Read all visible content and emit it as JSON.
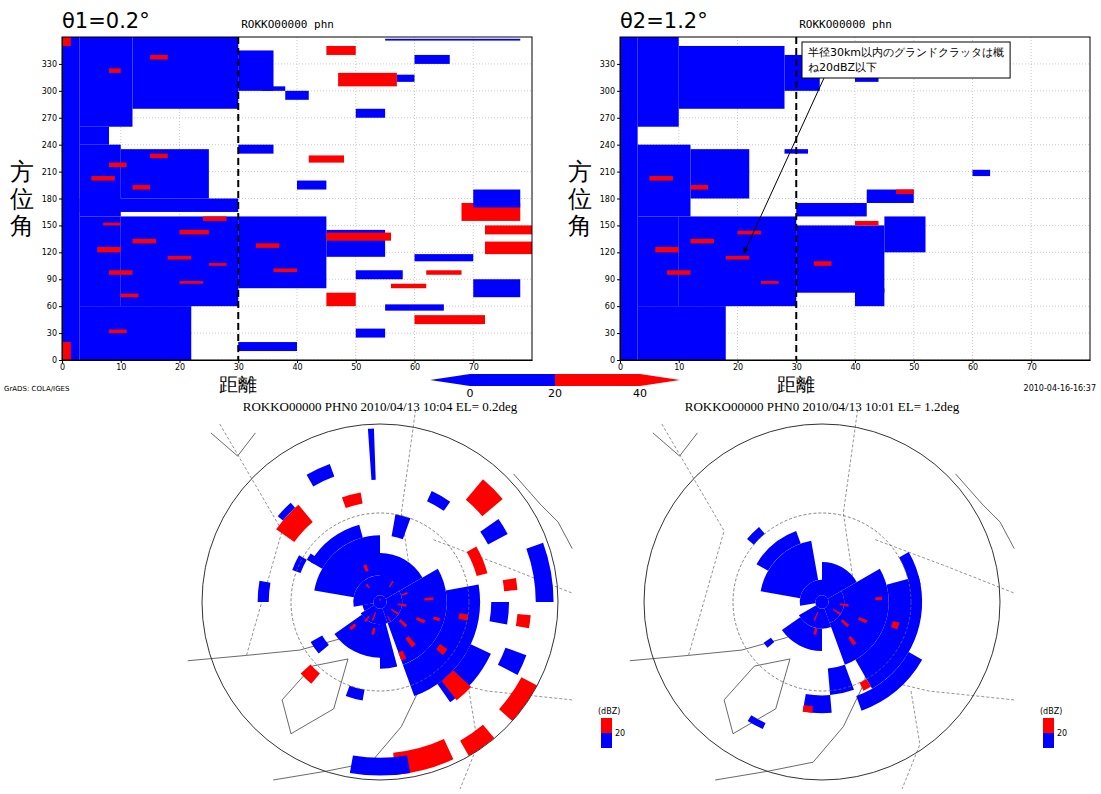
{
  "chart_data": [
    {
      "type": "radar",
      "title": "θ1=0.2°",
      "subtitle": "ROKKO00000 phn",
      "y_label": "方位角",
      "x_label": "距離",
      "xlim": [
        0,
        80
      ],
      "xticks": [
        0,
        10,
        20,
        30,
        40,
        50,
        60,
        70
      ],
      "ylim": [
        0,
        360
      ],
      "yticks": [
        0,
        30,
        60,
        90,
        120,
        150,
        180,
        210,
        240,
        270,
        300,
        330
      ],
      "grid": true,
      "reference_x": 30,
      "map_title": "ROKKO00000 PHN0 2010/04/13 10:04 EL= 0.2deg",
      "range_rings": [
        40,
        80
      ],
      "echoes": [
        [
          0,
          360,
          0,
          3,
          10
        ],
        [
          350,
          360,
          0,
          1.5,
          30
        ],
        [
          0,
          20,
          0,
          1.5,
          30
        ],
        [
          60,
          160,
          3,
          10,
          10
        ],
        [
          60,
          160,
          10,
          30,
          10
        ],
        [
          80,
          160,
          30,
          45,
          10
        ],
        [
          115,
          145,
          45,
          55,
          10
        ],
        [
          133,
          142,
          45,
          56,
          30
        ],
        [
          160,
          240,
          3,
          10,
          10
        ],
        [
          180,
          235,
          10,
          25,
          10
        ],
        [
          165,
          180,
          3,
          30,
          10
        ],
        [
          0,
          60,
          3,
          22,
          10
        ],
        [
          260,
          360,
          3,
          12,
          10
        ],
        [
          280,
          360,
          12,
          30,
          10
        ],
        [
          300,
          345,
          30,
          36,
          10
        ],
        [
          240,
          260,
          3,
          8,
          10
        ],
        [
          120,
          126,
          6,
          10,
          30
        ],
        [
          95,
          100,
          8,
          12,
          30
        ],
        [
          130,
          135,
          12,
          16,
          30
        ],
        [
          112,
          116,
          18,
          22,
          30
        ],
        [
          140,
          145,
          20,
          25,
          30
        ],
        [
          105,
          108,
          25,
          28,
          30
        ],
        [
          150,
          153,
          7,
          10,
          30
        ],
        [
          200,
          205,
          5,
          9,
          30
        ],
        [
          190,
          195,
          12,
          15,
          30
        ],
        [
          215,
          220,
          8,
          11,
          30
        ],
        [
          225,
          230,
          15,
          18,
          30
        ],
        [
          70,
          74,
          10,
          13,
          30
        ],
        [
          85,
          88,
          20,
          24,
          30
        ],
        [
          155,
          160,
          24,
          28,
          30
        ],
        [
          125,
          130,
          33,
          37,
          30
        ],
        [
          98,
          102,
          36,
          40,
          30
        ],
        [
          320,
          325,
          8,
          10,
          30
        ],
        [
          335,
          340,
          15,
          18,
          30
        ],
        [
          30,
          34,
          8,
          11,
          30
        ],
        [
          305,
          320,
          47,
          57,
          30
        ],
        [
          310,
          318,
          57,
          60,
          10
        ],
        [
          290,
          300,
          38,
          42,
          10
        ],
        [
          300,
          305,
          34,
          38,
          10
        ],
        [
          155,
          175,
          68,
          78,
          30
        ],
        [
          170,
          190,
          70,
          78,
          10
        ],
        [
          140,
          150,
          72,
          80,
          30
        ],
        [
          118,
          132,
          72,
          80,
          30
        ],
        [
          110,
          118,
          60,
          70,
          10
        ],
        [
          90,
          100,
          50,
          58,
          10
        ],
        [
          95,
          100,
          62,
          68,
          30
        ],
        [
          60,
          75,
          45,
          50,
          30
        ],
        [
          55,
          62,
          55,
          65,
          10
        ],
        [
          40,
          50,
          60,
          72,
          30
        ],
        [
          25,
          35,
          50,
          55,
          10
        ],
        [
          70,
          90,
          70,
          78,
          10
        ],
        [
          80,
          85,
          56,
          62,
          30
        ],
        [
          10,
          20,
          30,
          40,
          10
        ],
        [
          270,
          280,
          50,
          55,
          10
        ],
        [
          230,
          240,
          30,
          36,
          10
        ],
        [
          220,
          228,
          42,
          48,
          30
        ],
        [
          190,
          200,
          40,
          45,
          10
        ],
        [
          340,
          350,
          45,
          50,
          30
        ],
        [
          330,
          340,
          60,
          66,
          10
        ],
        [
          355,
          360,
          20,
          28,
          10
        ],
        [
          356,
          358,
          55,
          78,
          10
        ]
      ]
    },
    {
      "type": "radar",
      "title": "θ2=1.2°",
      "subtitle": "ROKKO00000 phn",
      "y_label": "方位角",
      "x_label": "距離",
      "xlim": [
        0,
        80
      ],
      "xticks": [
        0,
        10,
        20,
        30,
        40,
        50,
        60,
        70
      ],
      "ylim": [
        0,
        360
      ],
      "yticks": [
        0,
        30,
        60,
        90,
        120,
        150,
        180,
        210,
        240,
        270,
        300,
        330
      ],
      "grid": true,
      "reference_x": 30,
      "annotation": "半径30km以内のグランドクラッタは概ね20dBZ以下",
      "map_title": "ROKKO00000 PHN0 2010/04/13 10:01 EL= 1.2deg",
      "range_rings": [
        40,
        80
      ],
      "echoes": [
        [
          0,
          360,
          0,
          3,
          10
        ],
        [
          60,
          160,
          3,
          10,
          10
        ],
        [
          60,
          160,
          10,
          30,
          10
        ],
        [
          75,
          150,
          30,
          45,
          10
        ],
        [
          120,
          160,
          45,
          52,
          10
        ],
        [
          160,
          175,
          30,
          42,
          10
        ],
        [
          175,
          190,
          42,
          50,
          10
        ],
        [
          160,
          240,
          3,
          12,
          10
        ],
        [
          180,
          235,
          12,
          22,
          10
        ],
        [
          0,
          60,
          3,
          18,
          10
        ],
        [
          260,
          360,
          3,
          10,
          10
        ],
        [
          280,
          350,
          10,
          28,
          10
        ],
        [
          300,
          340,
          28,
          34,
          10
        ],
        [
          120,
          126,
          6,
          10,
          30
        ],
        [
          130,
          135,
          12,
          16,
          30
        ],
        [
          112,
          116,
          18,
          22,
          30
        ],
        [
          200,
          205,
          5,
          9,
          30
        ],
        [
          190,
          195,
          12,
          15,
          30
        ],
        [
          95,
          100,
          8,
          12,
          30
        ],
        [
          140,
          144,
          20,
          24,
          30
        ],
        [
          85,
          88,
          24,
          27,
          30
        ],
        [
          150,
          155,
          40,
          44,
          30
        ],
        [
          185,
          190,
          47,
          50,
          30
        ],
        [
          105,
          110,
          33,
          36,
          30
        ],
        [
          205,
          212,
          60,
          63,
          10
        ],
        [
          60,
          80,
          40,
          45,
          10
        ],
        [
          310,
          320,
          40,
          44,
          10
        ],
        [
          230,
          235,
          28,
          32,
          10
        ]
      ]
    }
  ],
  "colorbar": {
    "range": [
      0,
      40
    ],
    "ticks": [
      0,
      20,
      40
    ],
    "colors": [
      "#0000ff",
      "#ff0000"
    ]
  },
  "map_legend": {
    "title": "(dBZ)",
    "ticks": [
      20
    ]
  },
  "credit": "GrADS: COLA/IGES",
  "timestamp": "2010-04-16-16:37"
}
